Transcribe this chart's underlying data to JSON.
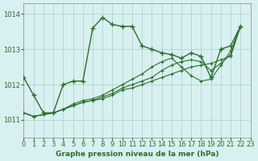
{
  "title": "Graphe pression niveau de la mer (hPa)",
  "background_color": "#d8f0f0",
  "grid_color": "#aad0cc",
  "line_color": "#2d6e2d",
  "xlim": [
    0,
    23
  ],
  "ylim": [
    1010.5,
    1014.3
  ],
  "yticks": [
    1011,
    1012,
    1013,
    1014
  ],
  "xticks": [
    0,
    1,
    2,
    3,
    4,
    5,
    6,
    7,
    8,
    9,
    10,
    11,
    12,
    13,
    14,
    15,
    16,
    17,
    18,
    19,
    20,
    21,
    22,
    23
  ],
  "series": [
    [
      1012.2,
      1011.7,
      1011.2,
      1011.2,
      1012.0,
      1012.1,
      1012.1,
      1013.6,
      1013.9,
      1013.7,
      1013.65,
      1013.65,
      1013.1,
      1013.0,
      1012.9,
      1012.85,
      1012.75,
      1012.9,
      1012.8,
      1012.2,
      1013.0,
      1013.1,
      1013.65
    ],
    [
      1011.2,
      1011.1,
      1011.15,
      1011.2,
      1011.3,
      1011.4,
      1011.5,
      1011.55,
      1011.6,
      1011.7,
      1011.85,
      1011.9,
      1012.0,
      1012.1,
      1012.2,
      1012.3,
      1012.4,
      1012.5,
      1012.55,
      1012.6,
      1012.7,
      1012.8,
      1013.65
    ],
    [
      1011.2,
      1011.1,
      1011.15,
      1011.2,
      1011.3,
      1011.4,
      1011.5,
      1011.55,
      1011.65,
      1011.75,
      1011.9,
      1012.0,
      1012.1,
      1012.2,
      1012.4,
      1012.55,
      1012.65,
      1012.7,
      1012.65,
      1012.4,
      1012.6,
      1012.85,
      1013.65
    ],
    [
      1011.2,
      1011.1,
      1011.15,
      1011.2,
      1011.3,
      1011.45,
      1011.55,
      1011.6,
      1011.7,
      1011.85,
      1012.0,
      1012.15,
      1012.3,
      1012.5,
      1012.65,
      1012.75,
      1012.5,
      1012.25,
      1012.1,
      1012.15,
      1012.55,
      1012.95,
      1013.65
    ]
  ]
}
